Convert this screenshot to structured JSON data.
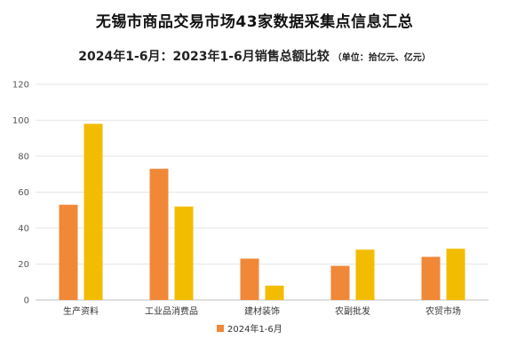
{
  "chart_data": {
    "type": "bar",
    "title": "无锡市商品交易市场43家数据采集点信息汇总",
    "subtitle": "2024年1-6月：2023年1-6月销售总额比较",
    "unit_note": "（单位：拾亿元、亿元）",
    "categories": [
      "生产资料",
      "工业品消费品",
      "建材装饰",
      "农副批发",
      "农贸市场"
    ],
    "series": [
      {
        "name": "2024年1-6月",
        "values": [
          53,
          73,
          23,
          19,
          24
        ],
        "color": "#F08838"
      },
      {
        "name": "",
        "values": [
          98,
          52,
          8,
          28,
          28.5
        ],
        "color": "#F2BC00"
      }
    ],
    "ylim": [
      0,
      120
    ],
    "yticks": [
      0,
      20,
      40,
      60,
      80,
      100,
      120
    ],
    "grid": true,
    "legend": "bottom-center"
  }
}
